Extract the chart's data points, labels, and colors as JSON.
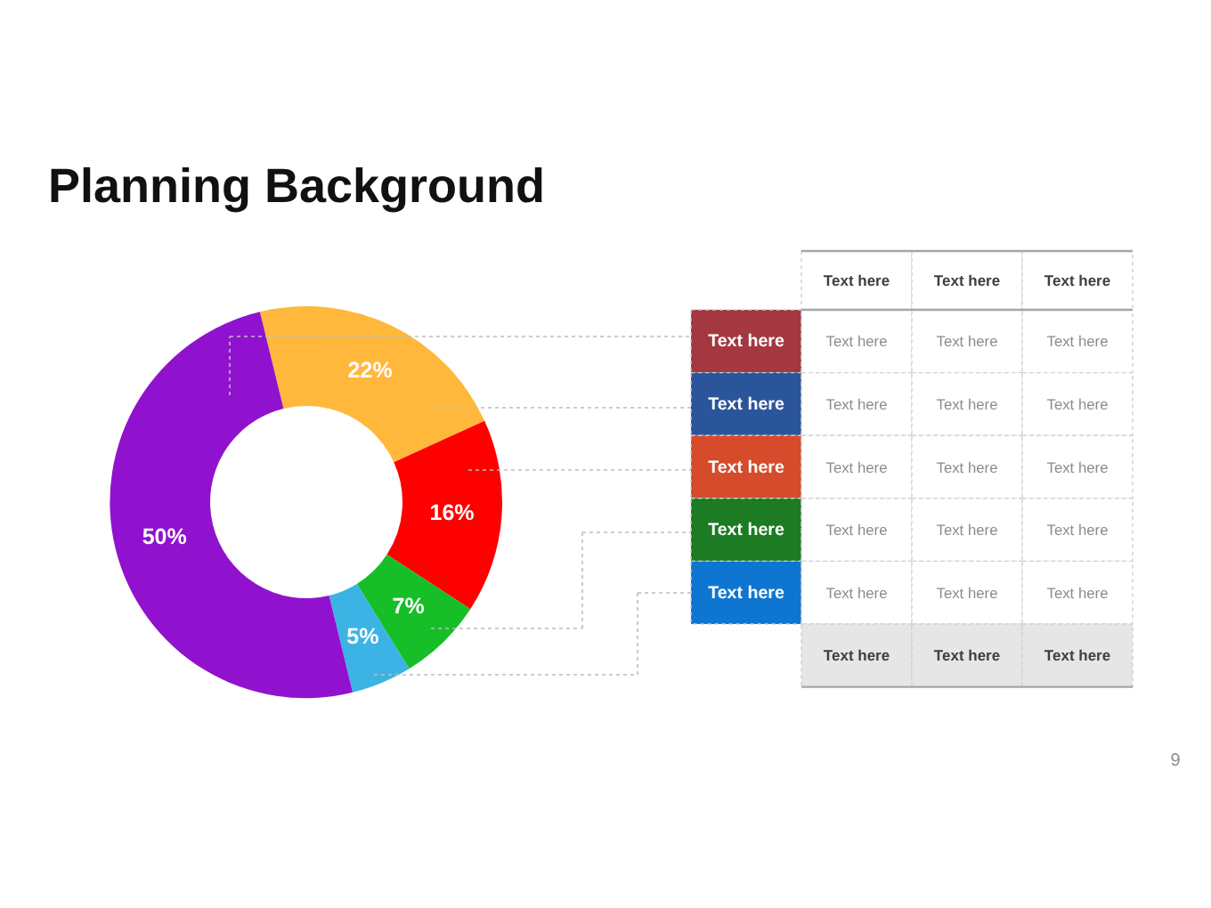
{
  "chart_data": [
    {
      "type": "donut",
      "title": "Planning Background",
      "categories": [
        null,
        null,
        null,
        null,
        null
      ],
      "values": [
        22,
        16,
        7,
        5,
        50
      ],
      "colors": [
        "#ffb83b",
        "#ff0000",
        "#16be27",
        "#3bb4e5",
        "#9112ce"
      ],
      "value_labels": [
        "22%",
        "16%",
        "7%",
        "5%",
        "50%"
      ],
      "annotations": [
        "9"
      ]
    },
    {
      "type": "other",
      "categories": [
        "Text here",
        "Text here",
        "Text here",
        "Text here",
        "Text here",
        null
      ],
      "colors": [
        "#a4373f",
        "#2b559a",
        "#d54b2b",
        "#1c7b23",
        "#0e76d1",
        "#e7e6e6"
      ],
      "annotations": [
        "Text here",
        "Text here",
        "Text here"
      ],
      "cell_labels": [
        [
          "Text here",
          "Text here",
          "Text here"
        ],
        [
          "Text here",
          "Text here",
          "Text here"
        ],
        [
          "Text here",
          "Text here",
          "Text here"
        ],
        [
          "Text here",
          "Text here",
          "Text here"
        ],
        [
          "Text here",
          "Text here",
          "Text here"
        ],
        [
          "Text here",
          "Text here",
          "Text here"
        ]
      ]
    }
  ]
}
